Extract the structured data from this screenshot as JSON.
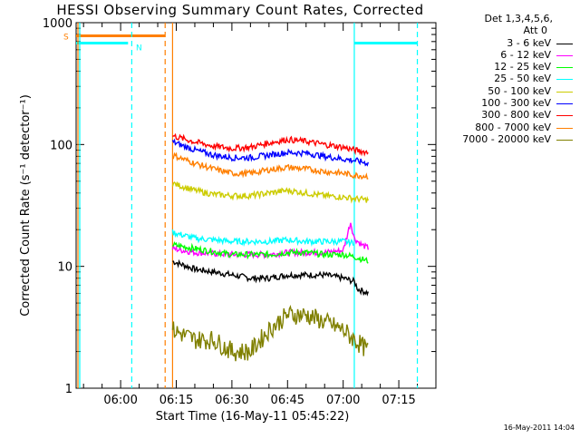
{
  "chart_data": {
    "type": "line",
    "title": "HESSI Observing Summary Count Rates, Corrected",
    "xlabel": "Start Time (16-May-11 05:45:22)",
    "ylabel": "Corrected Count Rate (s⁻¹ detector⁻¹)",
    "yscale": "log",
    "xlim": [
      "05:48",
      "07:25"
    ],
    "ylim": [
      1,
      1000
    ],
    "x_ticks": [
      "06:00",
      "06:15",
      "06:30",
      "06:45",
      "07:00",
      "07:15"
    ],
    "y_ticks": [
      "1",
      "10",
      "100",
      "1000"
    ],
    "legend": {
      "header": [
        "Det 1,3,4,5,6,",
        "Att 0"
      ],
      "placement": "right, outside plot"
    },
    "flags": [
      {
        "label": "S",
        "color": "#ff7f00",
        "level": 780,
        "start": "05:48",
        "end": "06:12",
        "vline_solid": "06:14",
        "vline_dashed": "06:12"
      },
      {
        "label": "N",
        "color": "#00ffff",
        "level": 680,
        "start": "05:48",
        "end": "06:02",
        "vline_dashed": "06:03"
      },
      {
        "label": "",
        "color": "#00ffff",
        "level": 680,
        "start": "07:03",
        "end": "07:20",
        "vline_solid": "07:03",
        "vline_dashed": "07:20"
      }
    ],
    "series": [
      {
        "name": "3 - 6 keV",
        "color": "#000000",
        "x": [
          "06:14",
          "06:20",
          "06:25",
          "06:30",
          "06:35",
          "06:40",
          "06:45",
          "06:50",
          "06:55",
          "07:00",
          "07:03",
          "07:04",
          "07:07"
        ],
        "values": [
          11,
          9.5,
          9,
          8.5,
          8,
          8,
          8.5,
          8.5,
          8.5,
          8,
          7.5,
          6.5,
          6
        ]
      },
      {
        "name": "6 - 12 keV",
        "color": "#ff00ff",
        "x": [
          "06:14",
          "06:20",
          "06:30",
          "06:40",
          "06:45",
          "06:50",
          "06:55",
          "07:00",
          "07:02",
          "07:03",
          "07:05",
          "07:07"
        ],
        "values": [
          14,
          13,
          12.5,
          12.5,
          13,
          13,
          13,
          13.5,
          23,
          17,
          15,
          14
        ]
      },
      {
        "name": "12 - 25 keV",
        "color": "#00ff00",
        "x": [
          "06:14",
          "06:20",
          "06:30",
          "06:40",
          "06:45",
          "06:50",
          "06:55",
          "07:00",
          "07:03",
          "07:07"
        ],
        "values": [
          15,
          14,
          12.5,
          12.5,
          13,
          13,
          12.5,
          12.5,
          12,
          11
        ]
      },
      {
        "name": "25 - 50 keV",
        "color": "#00ffff",
        "x": [
          "06:14",
          "06:20",
          "06:30",
          "06:40",
          "06:45",
          "06:50",
          "06:55",
          "07:00",
          "07:03"
        ],
        "values": [
          19,
          17,
          16,
          16,
          16.5,
          16,
          16,
          16,
          15.5
        ]
      },
      {
        "name": "50 - 100 keV",
        "color": "#cccc00",
        "x": [
          "06:14",
          "06:20",
          "06:25",
          "06:30",
          "06:35",
          "06:40",
          "06:45",
          "06:50",
          "06:55",
          "07:00",
          "07:03",
          "07:07"
        ],
        "values": [
          48,
          42,
          39,
          38,
          38,
          40,
          42,
          40,
          38,
          37,
          36,
          35
        ]
      },
      {
        "name": "100 - 300 keV",
        "color": "#0000ff",
        "x": [
          "06:14",
          "06:20",
          "06:25",
          "06:30",
          "06:35",
          "06:40",
          "06:45",
          "06:50",
          "06:55",
          "07:00",
          "07:03",
          "07:07"
        ],
        "values": [
          105,
          90,
          82,
          78,
          78,
          82,
          86,
          85,
          80,
          76,
          74,
          70
        ]
      },
      {
        "name": "300 - 800 keV",
        "color": "#ff0000",
        "x": [
          "06:14",
          "06:20",
          "06:25",
          "06:30",
          "06:35",
          "06:40",
          "06:45",
          "06:50",
          "06:55",
          "07:00",
          "07:03",
          "07:07"
        ],
        "values": [
          118,
          105,
          97,
          93,
          95,
          103,
          110,
          106,
          100,
          95,
          90,
          86
        ]
      },
      {
        "name": "800 - 7000 keV",
        "color": "#ff7f00",
        "x": [
          "06:14",
          "06:20",
          "06:25",
          "06:30",
          "06:35",
          "06:40",
          "06:45",
          "06:50",
          "06:55",
          "07:00",
          "07:03",
          "07:07"
        ],
        "values": [
          82,
          70,
          63,
          58,
          58,
          62,
          65,
          63,
          60,
          58,
          56,
          55
        ]
      },
      {
        "name": "7000 - 20000 keV",
        "color": "#808000",
        "x": [
          "06:14",
          "06:20",
          "06:25",
          "06:30",
          "06:35",
          "06:40",
          "06:45",
          "06:50",
          "06:55",
          "07:00",
          "07:03",
          "07:07"
        ],
        "values": [
          3,
          2.5,
          2.5,
          2,
          2,
          3,
          4,
          4,
          3.5,
          3,
          2.5,
          2
        ]
      }
    ]
  },
  "footer": {
    "timestamp": "16-May-2011 14:04"
  }
}
